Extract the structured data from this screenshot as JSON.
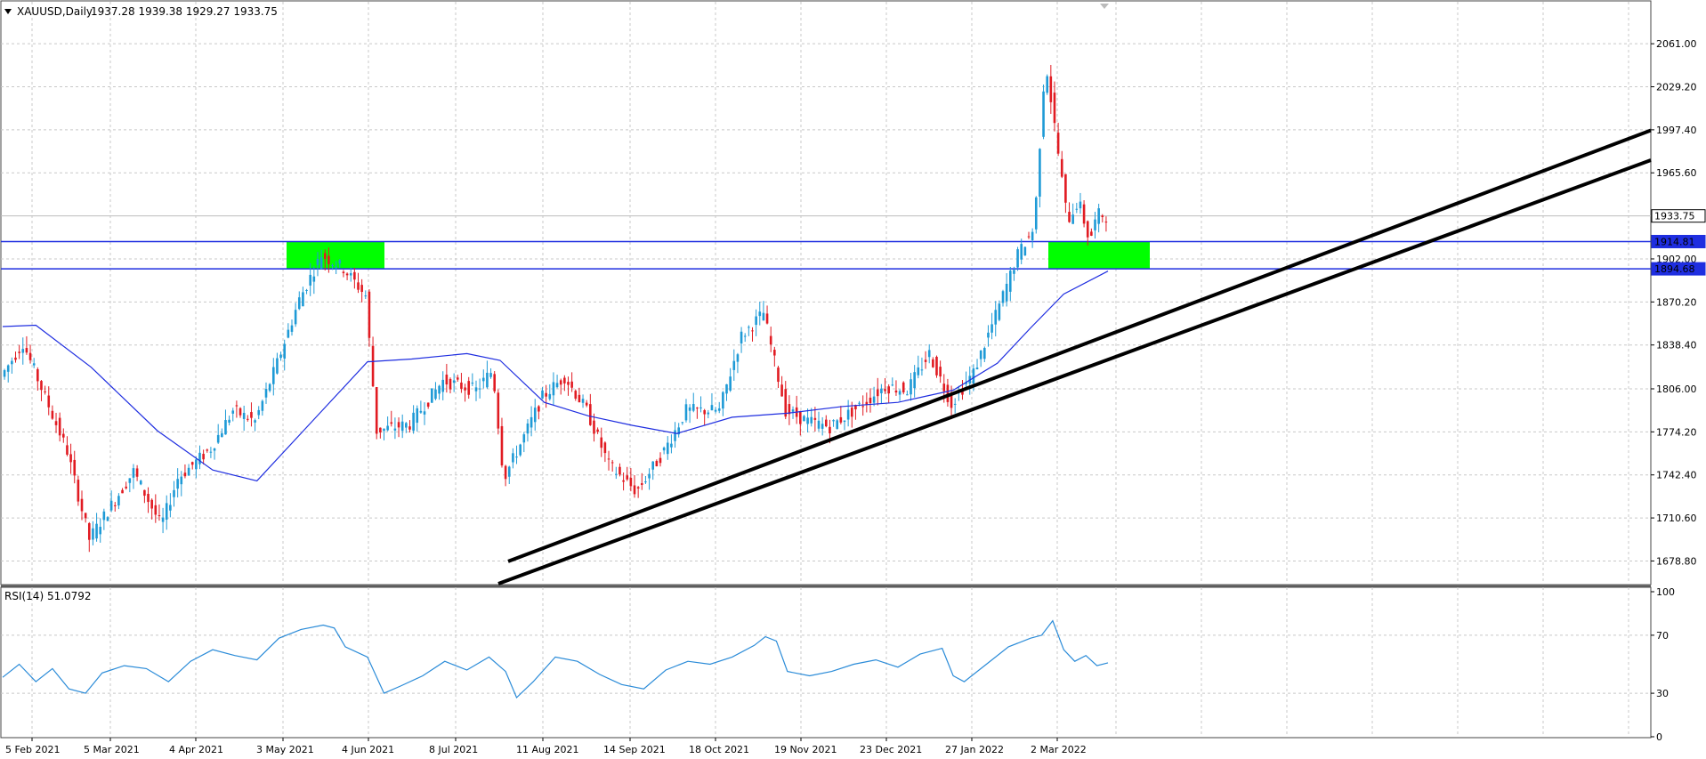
{
  "header": {
    "symbol_text": "XAUUSD,Daily",
    "ohlc_text": "1937.28 1939.38 1929.27 1933.75"
  },
  "rsi_header": {
    "text": "RSI(14) 51.0792"
  },
  "chart_data": {
    "type": "candlestick",
    "price_axis": {
      "ylim": [
        1662,
        2092
      ],
      "ticks": [
        "2061.00",
        "2029.20",
        "1997.40",
        "1965.60",
        "1933.75",
        "1914.81",
        "1902.00",
        "1894.68",
        "1870.20",
        "1838.40",
        "1806.00",
        "1774.20",
        "1742.40",
        "1710.60",
        "1678.80"
      ],
      "current_price": 1933.75
    },
    "x_axis": {
      "labels": [
        "5 Feb 2021",
        "5 Mar 2021",
        "4 Apr 2021",
        "3 May 2021",
        "4 Jun 2021",
        "8 Jul 2021",
        "11 Aug 2021",
        "14 Sep 2021",
        "18 Oct 2021",
        "19 Nov 2021",
        "23 Dec 2021",
        "27 Jan 2022",
        "2 Mar 2022"
      ]
    },
    "horizontal_levels": [
      1914.81,
      1894.68
    ],
    "zones": [
      {
        "from_label": "3 May 2021",
        "to_label": "4 Jun 2021",
        "low": 1894.68,
        "high": 1914.81,
        "color": "#00ff00"
      },
      {
        "from_label": "2 Mar 2022",
        "to_label": "2 Mar 2022 +",
        "low": 1894.68,
        "high": 1914.81,
        "color": "#00ff00"
      }
    ],
    "trendlines": [
      {
        "from": [
          1690,
          1678.5
        ],
        "to": [
          1995,
          1997
        ]
      },
      {
        "from": [
          1690,
          1662
        ],
        "to": [
          1995,
          1975
        ]
      }
    ],
    "moving_average": [
      {
        "x": 0.0,
        "y": 1852
      },
      {
        "x": 0.03,
        "y": 1853
      },
      {
        "x": 0.08,
        "y": 1822
      },
      {
        "x": 0.14,
        "y": 1775
      },
      {
        "x": 0.19,
        "y": 1746
      },
      {
        "x": 0.23,
        "y": 1738
      },
      {
        "x": 0.28,
        "y": 1782
      },
      {
        "x": 0.33,
        "y": 1826
      },
      {
        "x": 0.37,
        "y": 1828
      },
      {
        "x": 0.42,
        "y": 1832
      },
      {
        "x": 0.45,
        "y": 1827
      },
      {
        "x": 0.49,
        "y": 1796
      },
      {
        "x": 0.53,
        "y": 1786
      },
      {
        "x": 0.57,
        "y": 1779
      },
      {
        "x": 0.61,
        "y": 1773
      },
      {
        "x": 0.66,
        "y": 1785
      },
      {
        "x": 0.71,
        "y": 1788
      },
      {
        "x": 0.76,
        "y": 1793
      },
      {
        "x": 0.81,
        "y": 1796
      },
      {
        "x": 0.86,
        "y": 1805
      },
      {
        "x": 0.9,
        "y": 1825
      },
      {
        "x": 0.93,
        "y": 1851
      },
      {
        "x": 0.96,
        "y": 1876
      },
      {
        "x": 1.0,
        "y": 1893
      }
    ],
    "price_path": [
      {
        "x": 0.0,
        "y": 1815
      },
      {
        "x": 0.02,
        "y": 1840
      },
      {
        "x": 0.04,
        "y": 1800
      },
      {
        "x": 0.06,
        "y": 1760
      },
      {
        "x": 0.08,
        "y": 1695
      },
      {
        "x": 0.1,
        "y": 1720
      },
      {
        "x": 0.12,
        "y": 1745
      },
      {
        "x": 0.145,
        "y": 1705
      },
      {
        "x": 0.16,
        "y": 1740
      },
      {
        "x": 0.19,
        "y": 1762
      },
      {
        "x": 0.21,
        "y": 1790
      },
      {
        "x": 0.23,
        "y": 1782
      },
      {
        "x": 0.25,
        "y": 1825
      },
      {
        "x": 0.27,
        "y": 1872
      },
      {
        "x": 0.29,
        "y": 1905
      },
      {
        "x": 0.31,
        "y": 1895
      },
      {
        "x": 0.33,
        "y": 1875
      },
      {
        "x": 0.34,
        "y": 1775
      },
      {
        "x": 0.37,
        "y": 1780
      },
      {
        "x": 0.4,
        "y": 1812
      },
      {
        "x": 0.43,
        "y": 1805
      },
      {
        "x": 0.445,
        "y": 1820
      },
      {
        "x": 0.455,
        "y": 1740
      },
      {
        "x": 0.47,
        "y": 1765
      },
      {
        "x": 0.49,
        "y": 1800
      },
      {
        "x": 0.51,
        "y": 1815
      },
      {
        "x": 0.53,
        "y": 1790
      },
      {
        "x": 0.55,
        "y": 1750
      },
      {
        "x": 0.575,
        "y": 1730
      },
      {
        "x": 0.6,
        "y": 1760
      },
      {
        "x": 0.62,
        "y": 1790
      },
      {
        "x": 0.65,
        "y": 1790
      },
      {
        "x": 0.67,
        "y": 1845
      },
      {
        "x": 0.69,
        "y": 1862
      },
      {
        "x": 0.71,
        "y": 1790
      },
      {
        "x": 0.73,
        "y": 1782
      },
      {
        "x": 0.75,
        "y": 1778
      },
      {
        "x": 0.78,
        "y": 1795
      },
      {
        "x": 0.8,
        "y": 1808
      },
      {
        "x": 0.82,
        "y": 1805
      },
      {
        "x": 0.84,
        "y": 1832
      },
      {
        "x": 0.86,
        "y": 1795
      },
      {
        "x": 0.88,
        "y": 1818
      },
      {
        "x": 0.9,
        "y": 1860
      },
      {
        "x": 0.92,
        "y": 1905
      },
      {
        "x": 0.935,
        "y": 1925
      },
      {
        "x": 0.945,
        "y": 2050
      },
      {
        "x": 0.955,
        "y": 1990
      },
      {
        "x": 0.965,
        "y": 1930
      },
      {
        "x": 0.975,
        "y": 1945
      },
      {
        "x": 0.985,
        "y": 1915
      },
      {
        "x": 0.992,
        "y": 1935
      },
      {
        "x": 1.0,
        "y": 1934
      }
    ],
    "rsi": {
      "ylim": [
        0,
        100
      ],
      "ticks": [
        "100",
        "70",
        "30",
        "0"
      ],
      "points": [
        {
          "x": 0.0,
          "y": 41
        },
        {
          "x": 0.015,
          "y": 50
        },
        {
          "x": 0.03,
          "y": 38
        },
        {
          "x": 0.045,
          "y": 47
        },
        {
          "x": 0.06,
          "y": 33
        },
        {
          "x": 0.075,
          "y": 30
        },
        {
          "x": 0.09,
          "y": 44
        },
        {
          "x": 0.11,
          "y": 49
        },
        {
          "x": 0.13,
          "y": 47
        },
        {
          "x": 0.15,
          "y": 38
        },
        {
          "x": 0.17,
          "y": 52
        },
        {
          "x": 0.19,
          "y": 60
        },
        {
          "x": 0.21,
          "y": 56
        },
        {
          "x": 0.23,
          "y": 53
        },
        {
          "x": 0.25,
          "y": 68
        },
        {
          "x": 0.27,
          "y": 74
        },
        {
          "x": 0.29,
          "y": 77
        },
        {
          "x": 0.3,
          "y": 75
        },
        {
          "x": 0.31,
          "y": 62
        },
        {
          "x": 0.33,
          "y": 55
        },
        {
          "x": 0.345,
          "y": 30
        },
        {
          "x": 0.36,
          "y": 35
        },
        {
          "x": 0.38,
          "y": 42
        },
        {
          "x": 0.4,
          "y": 52
        },
        {
          "x": 0.42,
          "y": 46
        },
        {
          "x": 0.44,
          "y": 55
        },
        {
          "x": 0.455,
          "y": 45
        },
        {
          "x": 0.465,
          "y": 27
        },
        {
          "x": 0.48,
          "y": 38
        },
        {
          "x": 0.5,
          "y": 55
        },
        {
          "x": 0.52,
          "y": 52
        },
        {
          "x": 0.54,
          "y": 43
        },
        {
          "x": 0.56,
          "y": 36
        },
        {
          "x": 0.58,
          "y": 33
        },
        {
          "x": 0.6,
          "y": 46
        },
        {
          "x": 0.62,
          "y": 52
        },
        {
          "x": 0.64,
          "y": 50
        },
        {
          "x": 0.66,
          "y": 55
        },
        {
          "x": 0.68,
          "y": 63
        },
        {
          "x": 0.69,
          "y": 69
        },
        {
          "x": 0.7,
          "y": 66
        },
        {
          "x": 0.71,
          "y": 45
        },
        {
          "x": 0.73,
          "y": 42
        },
        {
          "x": 0.75,
          "y": 45
        },
        {
          "x": 0.77,
          "y": 50
        },
        {
          "x": 0.79,
          "y": 53
        },
        {
          "x": 0.81,
          "y": 48
        },
        {
          "x": 0.83,
          "y": 57
        },
        {
          "x": 0.85,
          "y": 61
        },
        {
          "x": 0.86,
          "y": 42
        },
        {
          "x": 0.87,
          "y": 38
        },
        {
          "x": 0.89,
          "y": 50
        },
        {
          "x": 0.91,
          "y": 62
        },
        {
          "x": 0.93,
          "y": 68
        },
        {
          "x": 0.94,
          "y": 70
        },
        {
          "x": 0.95,
          "y": 80
        },
        {
          "x": 0.96,
          "y": 60
        },
        {
          "x": 0.97,
          "y": 52
        },
        {
          "x": 0.98,
          "y": 56
        },
        {
          "x": 0.99,
          "y": 49
        },
        {
          "x": 1.0,
          "y": 51
        }
      ]
    },
    "colors": {
      "bull": "#1e9ad6",
      "bear": "#e11b22",
      "ma": "#1f2ee0",
      "level": "#1f2ee0",
      "zone": "#00ff00",
      "trend": "#000000",
      "rsi": "#2a8bd8"
    }
  }
}
